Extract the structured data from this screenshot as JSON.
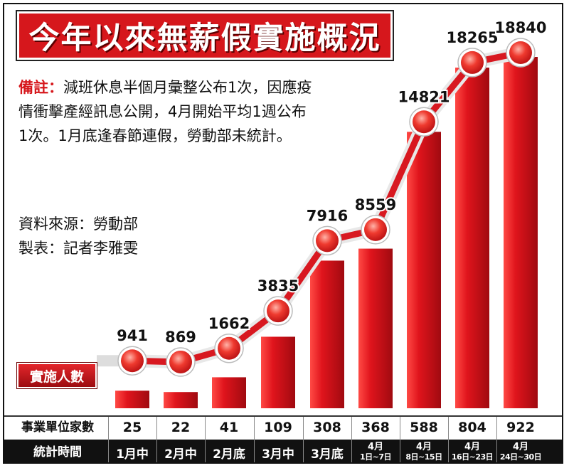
{
  "title": "今年以來無薪假實施概況",
  "note": {
    "label": "備註：",
    "text": "減班休息半個月彙整公布1次，因應疫情衝擊產經訊息公開，4月開始平均1週公布1次。1月底逢春節連假，勞動部未統計。"
  },
  "source": {
    "line1": "資料來源：勞動部",
    "line2": "製表：記者李雅雯"
  },
  "table_headers": {
    "companies": "事業單位家數",
    "period": "統計時間"
  },
  "colors": {
    "title_bg": "#d6171c",
    "bar": "#c8101a",
    "bar_light": "#ff4a45",
    "line": "#d81820",
    "dot": "#ef3a2f",
    "header_bg": "#111111"
  },
  "chart_data": {
    "type": "bar",
    "title": "今年以來無薪假實施概況",
    "series": [
      {
        "name": "實施人數",
        "values": [
          941,
          869,
          1662,
          3835,
          7916,
          8559,
          14821,
          18265,
          18840
        ]
      }
    ],
    "categories": [
      {
        "line1": "1月中"
      },
      {
        "line1": "2月中"
      },
      {
        "line1": "2月底"
      },
      {
        "line1": "3月中"
      },
      {
        "line1": "3月底"
      },
      {
        "line1": "4月",
        "line2": "1日~7日"
      },
      {
        "line1": "4月",
        "line2": "8日~15日"
      },
      {
        "line1": "4月",
        "line2": "16日~23日"
      },
      {
        "line1": "4月",
        "line2": "24日~30日"
      }
    ],
    "companies": [
      "25",
      "22",
      "41",
      "109",
      "308",
      "368",
      "588",
      "804",
      "922"
    ],
    "grid": false,
    "legend": "left"
  }
}
